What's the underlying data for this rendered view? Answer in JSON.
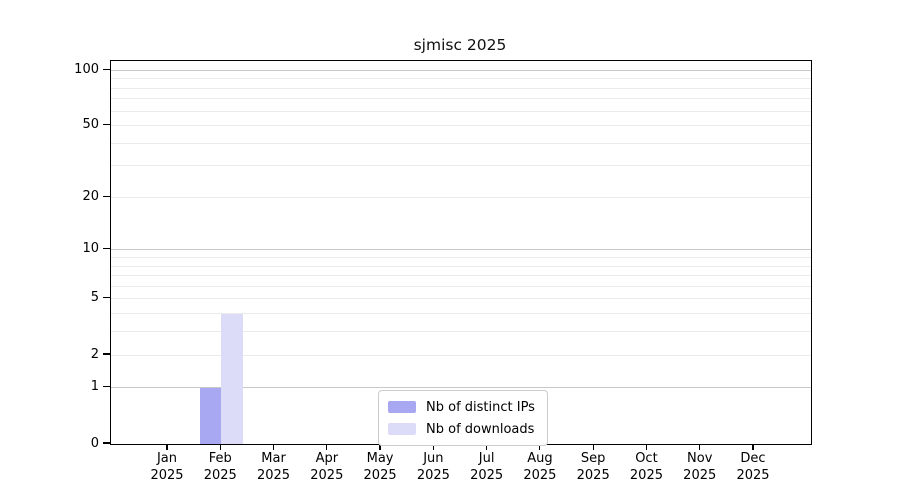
{
  "chart_data": {
    "type": "bar",
    "title": "sjmisc 2025",
    "x_year": "2025",
    "categories": [
      "Jan",
      "Feb",
      "Mar",
      "Apr",
      "May",
      "Jun",
      "Jul",
      "Aug",
      "Sep",
      "Oct",
      "Nov",
      "Dec"
    ],
    "series": [
      {
        "name": "Nb of distinct IPs",
        "color": "#a7a7f2",
        "values": [
          0,
          1,
          0,
          0,
          0,
          0,
          0,
          0,
          0,
          0,
          0,
          0
        ]
      },
      {
        "name": "Nb of downloads",
        "color": "#dcdcf8",
        "values": [
          0,
          4,
          0,
          0,
          0,
          0,
          0,
          0,
          0,
          0,
          0,
          0
        ]
      }
    ],
    "y_scale": "log1p",
    "ylim": [
      0,
      100
    ],
    "y_tick_labels": [
      0,
      1,
      2,
      5,
      10,
      20,
      50,
      100
    ],
    "y_major_gridlines": [
      1,
      10,
      100
    ],
    "y_minor_gridlines": [
      2,
      3,
      4,
      5,
      6,
      7,
      8,
      9,
      20,
      30,
      40,
      50,
      60,
      70,
      80,
      90
    ],
    "grid": true,
    "legend_position": "inside-bottom-center"
  }
}
